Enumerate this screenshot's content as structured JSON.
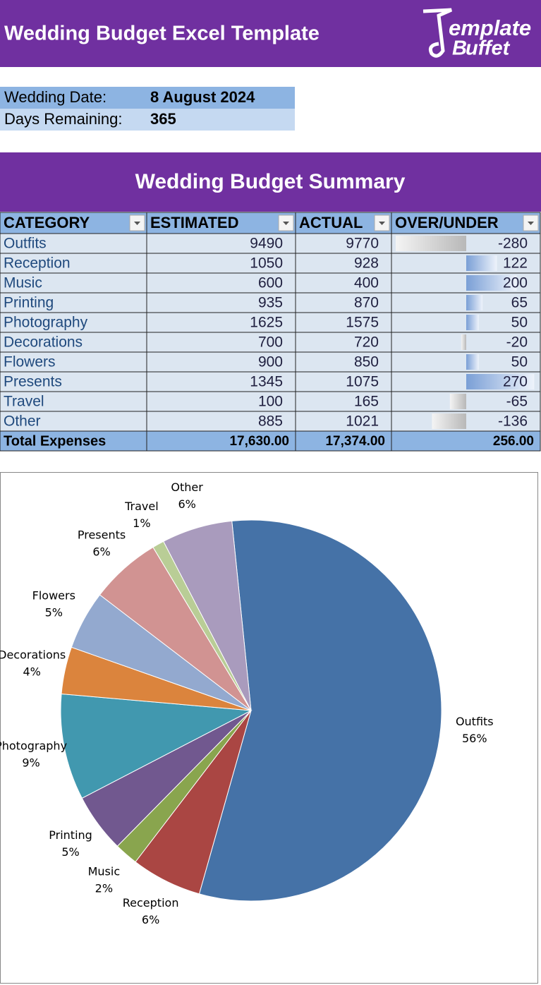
{
  "header": {
    "title": "Wedding Budget Excel Template",
    "logo": [
      "emplate",
      "uffet"
    ]
  },
  "info": {
    "rows": [
      {
        "label": "Wedding Date:",
        "value": "8 August 2024"
      },
      {
        "label": "Days Remaining:",
        "value": 365
      }
    ]
  },
  "summary": {
    "title": "Wedding Budget Summary",
    "columns": [
      "CATEGORY",
      "ESTIMATED",
      "ACTUAL",
      "OVER/UNDER"
    ],
    "rows": [
      [
        "Outfits",
        9490,
        9770,
        -280
      ],
      [
        "Reception",
        1050,
        928,
        122
      ],
      [
        "Music",
        600,
        400,
        200
      ],
      [
        "Printing",
        935,
        870,
        65
      ],
      [
        "Photography",
        1625,
        1575,
        50
      ],
      [
        "Decorations",
        700,
        720,
        -20
      ],
      [
        "Flowers",
        900,
        850,
        50
      ],
      [
        "Presents",
        1345,
        1075,
        270
      ],
      [
        "Travel",
        100,
        165,
        -65
      ],
      [
        "Other",
        885,
        1021,
        -136
      ]
    ],
    "total": [
      "Total Expenses",
      {
        "value": 17630,
        "label": "17,630.00"
      },
      {
        "value": 17374,
        "label": "17,374.00"
      },
      {
        "value": 256,
        "label": "256.00"
      }
    ]
  },
  "chart_data": {
    "type": "pie",
    "categories": [
      "Outfits",
      "Reception",
      "Music",
      "Printing",
      "Photography",
      "Decorations",
      "Flowers",
      "Presents",
      "Travel",
      "Other"
    ],
    "values": [
      56,
      6,
      2,
      5,
      9,
      4,
      5,
      6,
      1,
      6
    ],
    "value_labels": [
      "56%",
      "6%",
      "2%",
      "5%",
      "9%",
      "4%",
      "5%",
      "6%",
      "1%",
      "6%"
    ],
    "colors": [
      "#4572a7",
      "#aa4643",
      "#89a54e",
      "#71588f",
      "#4198af",
      "#db843d",
      "#93a9cf",
      "#d19392",
      "#b9cd96",
      "#a99bbd"
    ]
  }
}
